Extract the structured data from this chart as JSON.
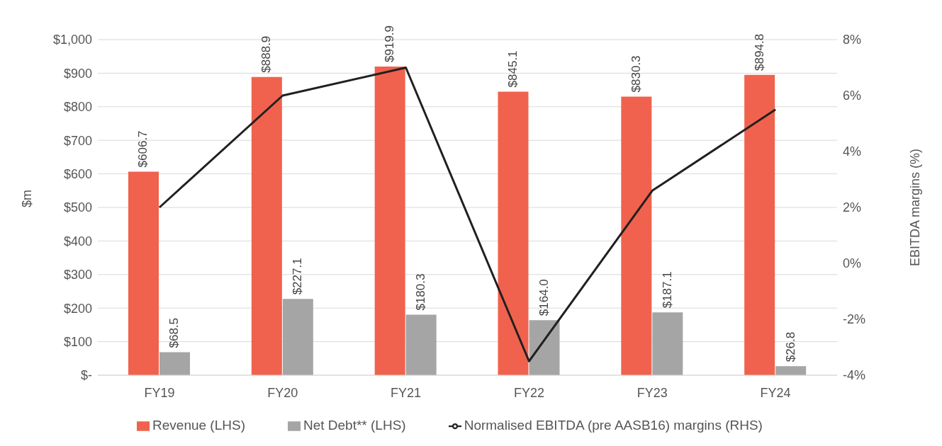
{
  "chart_data": {
    "type": "bar",
    "ylabel": "$m",
    "y2label": "EBITDA margins (%)",
    "categories": [
      "FY19",
      "FY20",
      "FY21",
      "FY22",
      "FY23",
      "FY24"
    ],
    "series": [
      {
        "name": "Revenue (LHS)",
        "color": "#f0624d",
        "values": [
          606.7,
          888.9,
          919.9,
          845.1,
          830.3,
          894.8
        ],
        "value_labels": [
          "$606.7",
          "$888.9",
          "$919.9",
          "$845.1",
          "$830.3",
          "$894.8"
        ]
      },
      {
        "name": "Net Debt** (LHS)",
        "color": "#a5a5a5",
        "values": [
          68.5,
          227.1,
          180.3,
          164.0,
          187.1,
          26.8
        ],
        "value_labels": [
          "$68.5",
          "$227.1",
          "$180.3",
          "$164.0",
          "$187.1",
          "$26.8"
        ]
      },
      {
        "name": "Normalised EBITDA (pre AASB16) margins (RHS)",
        "type": "line",
        "axis": "y2",
        "color": "#231f20",
        "values": [
          2.0,
          6.0,
          7.0,
          -3.5,
          2.6,
          5.5
        ]
      }
    ],
    "ylim": [
      0,
      1000
    ],
    "yticks": [
      {
        "value": 0,
        "label": "$-"
      },
      {
        "value": 100,
        "label": "$100"
      },
      {
        "value": 200,
        "label": "$200"
      },
      {
        "value": 300,
        "label": "$300"
      },
      {
        "value": 400,
        "label": "$400"
      },
      {
        "value": 500,
        "label": "$500"
      },
      {
        "value": 600,
        "label": "$600"
      },
      {
        "value": 700,
        "label": "$700"
      },
      {
        "value": 800,
        "label": "$800"
      },
      {
        "value": 900,
        "label": "$900"
      },
      {
        "value": 1000,
        "label": "$1,000"
      }
    ],
    "y2lim": [
      -4,
      8
    ],
    "y2ticks": [
      {
        "value": -4,
        "label": "-4%"
      },
      {
        "value": -2,
        "label": "-2%"
      },
      {
        "value": 0,
        "label": "0%"
      },
      {
        "value": 2,
        "label": "2%"
      },
      {
        "value": 4,
        "label": "4%"
      },
      {
        "value": 6,
        "label": "6%"
      },
      {
        "value": 8,
        "label": "8%"
      }
    ],
    "grid": "y",
    "legend": "bottom",
    "marker": "none",
    "line_style": "solid"
  }
}
